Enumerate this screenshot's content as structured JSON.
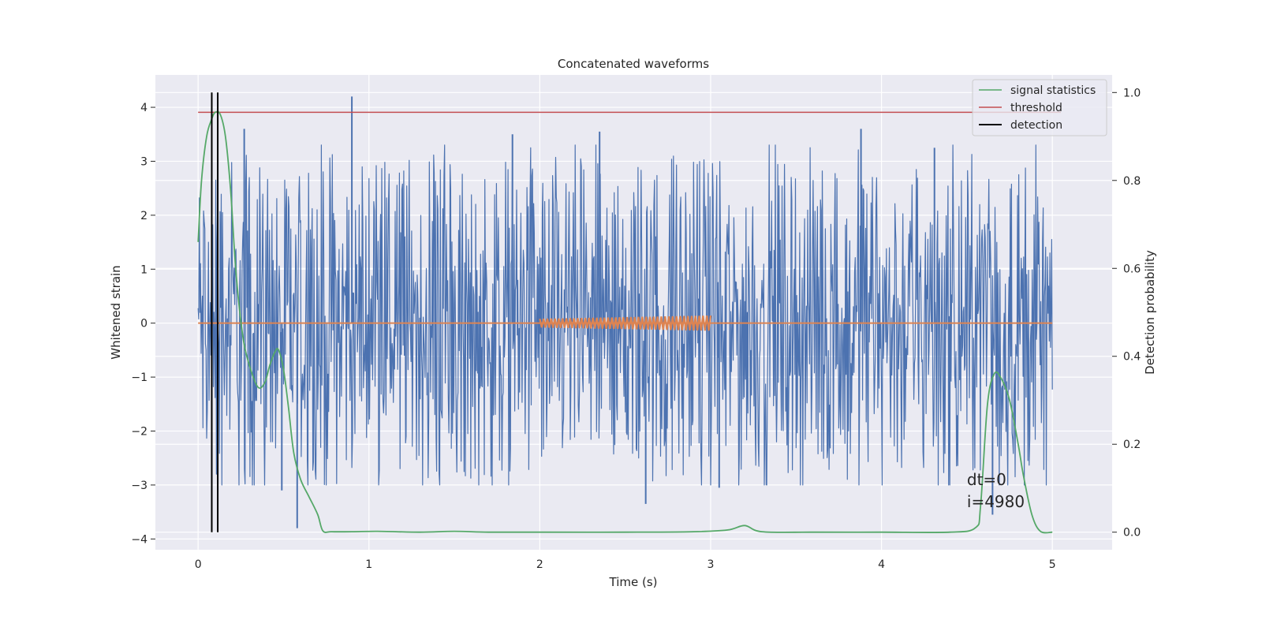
{
  "chart_data": {
    "type": "line",
    "title": "Concatenated waveforms",
    "xlabel": "Time (s)",
    "ylabel": "Whitened strain",
    "y2label": "Detection probability",
    "xlim": [
      -0.25,
      5.35
    ],
    "ylim": [
      -4.2,
      4.6
    ],
    "y2lim": [
      -0.04,
      1.04
    ],
    "xticks": [
      0,
      1,
      2,
      3,
      4,
      5
    ],
    "xtick_labels": [
      "0",
      "1",
      "2",
      "3",
      "4",
      "5"
    ],
    "yticks": [
      4,
      3,
      2,
      1,
      0,
      -1,
      -2,
      -3,
      -4
    ],
    "ytick_labels": [
      "4",
      "3",
      "2",
      "1",
      "0",
      "−1",
      "−2",
      "−3",
      "−4"
    ],
    "y2ticks": [
      1.0,
      0.8,
      0.6,
      0.4,
      0.2,
      0.0
    ],
    "y2tick_labels": [
      "1.0",
      "0.8",
      "0.6",
      "0.4",
      "0.2",
      "0.0"
    ],
    "grid": true,
    "legend_position": "top-right",
    "colors": {
      "background": "#eaeaf2",
      "grid": "#ffffff",
      "strain": "#4c72b0",
      "template": "#dd8452",
      "statistics": "#55a868",
      "threshold": "#c44e52",
      "detection": "#000000",
      "text": "#262626"
    },
    "series": [
      {
        "name": "",
        "axis": "left",
        "kind": "noise",
        "x_range": [
          0,
          5
        ],
        "envelope_amplitude": 2.0,
        "peak_spikes": [
          {
            "x": 0.9,
            "y": 4.2
          },
          {
            "x": 0.27,
            "y": 3.6
          },
          {
            "x": 1.84,
            "y": 3.5
          },
          {
            "x": 2.35,
            "y": 3.55
          },
          {
            "x": 3.88,
            "y": 3.6
          },
          {
            "x": 4.31,
            "y": 3.25
          },
          {
            "x": 0.58,
            "y": -3.8
          },
          {
            "x": 2.62,
            "y": -3.35
          },
          {
            "x": 0.49,
            "y": -3.1
          },
          {
            "x": 3.05,
            "y": -3.05
          },
          {
            "x": 4.65,
            "y": -3.55
          }
        ]
      },
      {
        "name": "",
        "axis": "left",
        "kind": "template",
        "x": [
          0,
          2,
          2,
          3,
          5
        ],
        "y": [
          0,
          0,
          0,
          0,
          0
        ],
        "chirp_x_range": [
          2,
          3
        ],
        "chirp_amplitude_start": 0.08,
        "chirp_amplitude_end": 0.14
      },
      {
        "name": "signal statistics",
        "axis": "right",
        "x": [
          0,
          0.02,
          0.05,
          0.08,
          0.1,
          0.13,
          0.16,
          0.19,
          0.22,
          0.26,
          0.3,
          0.35,
          0.39,
          0.42,
          0.45,
          0.47,
          0.5,
          0.53,
          0.56,
          0.6,
          0.65,
          0.7,
          0.73,
          0.78,
          0.9,
          1.05,
          1.3,
          1.5,
          1.7,
          2.0,
          2.5,
          2.9,
          3.1,
          3.2,
          3.3,
          3.6,
          4.0,
          4.4,
          4.55,
          4.58,
          4.62,
          4.66,
          4.7,
          4.75,
          4.8,
          4.83,
          4.88,
          4.93,
          5.0
        ],
        "y": [
          0.66,
          0.8,
          0.9,
          0.94,
          0.955,
          0.95,
          0.9,
          0.78,
          0.6,
          0.45,
          0.38,
          0.33,
          0.34,
          0.38,
          0.41,
          0.415,
          0.37,
          0.28,
          0.18,
          0.12,
          0.08,
          0.04,
          0.003,
          0.001,
          0.001,
          0.002,
          0.0,
          0.002,
          0.0,
          0.0,
          0.0,
          0.001,
          0.005,
          0.015,
          0.001,
          0.0,
          0.0,
          0.0,
          0.01,
          0.06,
          0.29,
          0.36,
          0.35,
          0.3,
          0.2,
          0.13,
          0.04,
          0.002,
          0.0
        ]
      },
      {
        "name": "threshold",
        "axis": "right",
        "x": [
          0,
          5.05
        ],
        "y": [
          0.955,
          0.955
        ]
      },
      {
        "name": "detection",
        "axis": "right",
        "kind": "vlines",
        "x": [
          0.08,
          0.115
        ],
        "y_range": [
          0.0,
          1.0
        ]
      }
    ],
    "annotation": {
      "x": 4.5,
      "line1": "dt=0",
      "line2": "i=4980"
    }
  }
}
